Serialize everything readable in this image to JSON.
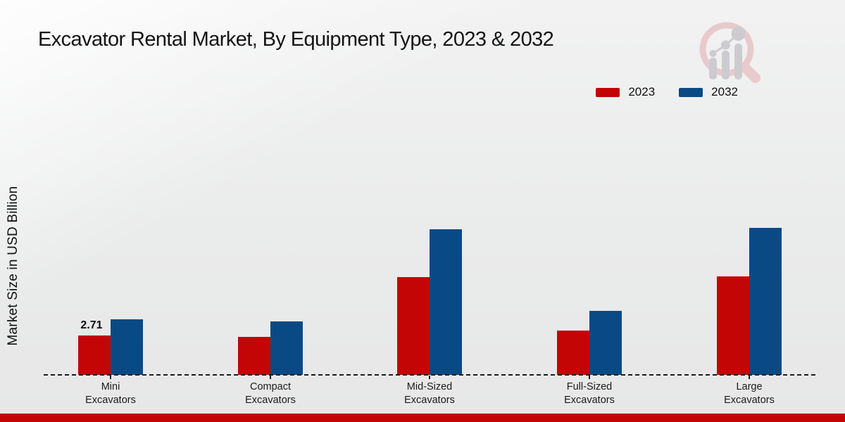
{
  "title": "Excavator Rental Market, By Equipment Type, 2023 & 2032",
  "legend": {
    "items": [
      {
        "label": "2023",
        "color": "#c30505"
      },
      {
        "label": "2032",
        "color": "#0a4a84"
      }
    ]
  },
  "chart_data": {
    "type": "bar",
    "title": "Excavator Rental Market, By Equipment Type, 2023 & 2032",
    "xlabel": "",
    "ylabel": "Market Size in USD Billion",
    "categories": [
      "Mini Excavators",
      "Compact Excavators",
      "Mid-Sized Excavators",
      "Full-Sized Excavators",
      "Large Excavators"
    ],
    "series": [
      {
        "name": "2023",
        "color": "#c30505",
        "values": [
          2.71,
          2.63,
          6.71,
          3.03,
          6.78
        ]
      },
      {
        "name": "2032",
        "color": "#0a4a84",
        "values": [
          3.82,
          3.68,
          10.02,
          4.39,
          10.12
        ]
      }
    ],
    "annotations": [
      {
        "category_index": 0,
        "series_index": 0,
        "text": "2.71"
      }
    ],
    "ylim": [
      0,
      11
    ],
    "grid": false,
    "baseline_style": "dashed",
    "legend_position": "top-right"
  },
  "colors": {
    "series_2023": "#c30505",
    "series_2032": "#0a4a84",
    "footer_strip": "#c30505",
    "background": "#ededed"
  },
  "watermark": {
    "name": "magnifier-bar-chart-logo"
  }
}
